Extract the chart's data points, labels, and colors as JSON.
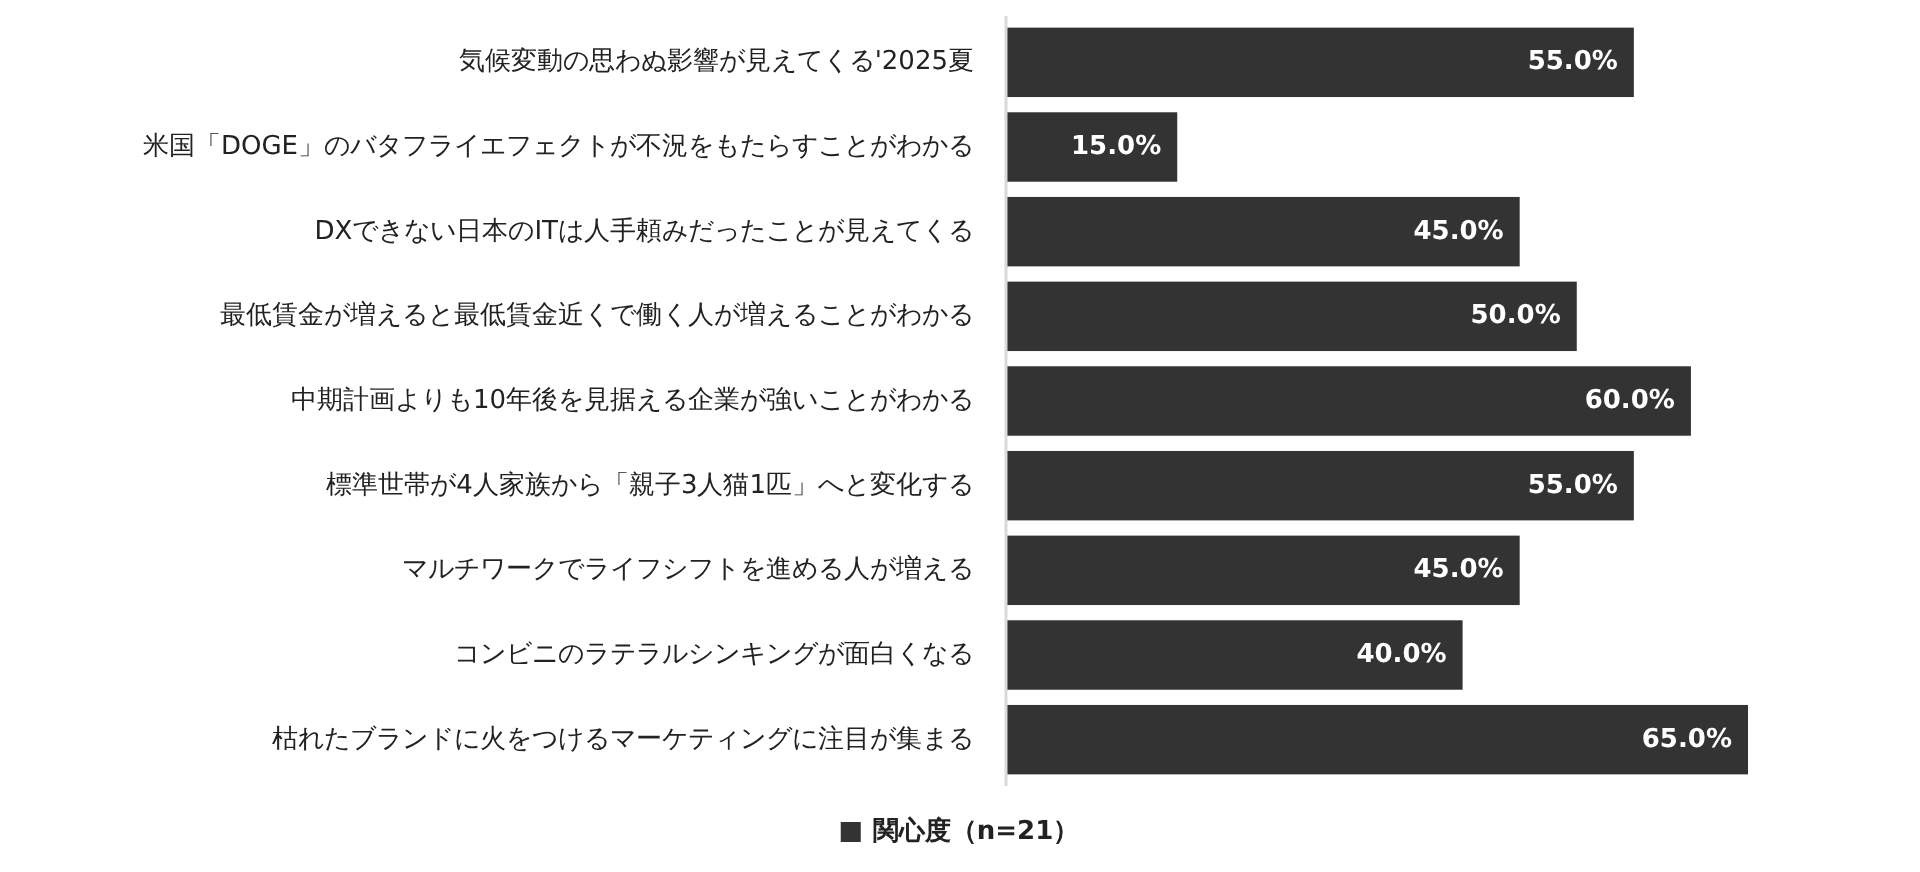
{
  "chart_data": {
    "type": "bar",
    "orientation": "horizontal",
    "categories": [
      "気候変動の思わぬ影響が見えてくる'2025夏",
      "米国「DOGE」のバタフライエフェクトが不況をもたらすことがわかる",
      "DXできない日本のITは人手頼みだったことが見えてくる",
      "最低賃金が増えると最低賃金近くで働く人が増えることがわかる",
      "中期計画よりも10年後を見据える企業が強いことがわかる",
      "標準世帯が4人家族から「親子3人猫1匹」へと変化する",
      "マルチワークでライフシフトを進める人が増える",
      "コンビニのラテラルシンキングが面白くなる",
      "枯れたブランドに火をつけるマーケティングに注目が集まる"
    ],
    "series": [
      {
        "name": "関心度（n=21）",
        "color": "#333333",
        "values": [
          55,
          15,
          45,
          50,
          60,
          55,
          45,
          40,
          65
        ],
        "value_labels": [
          "55.0%",
          "15.0%",
          "45.0%",
          "50.0%",
          "60.0%",
          "55.0%",
          "45.0%",
          "40.0%",
          "65.0%"
        ]
      }
    ],
    "legend": "bottom"
  }
}
